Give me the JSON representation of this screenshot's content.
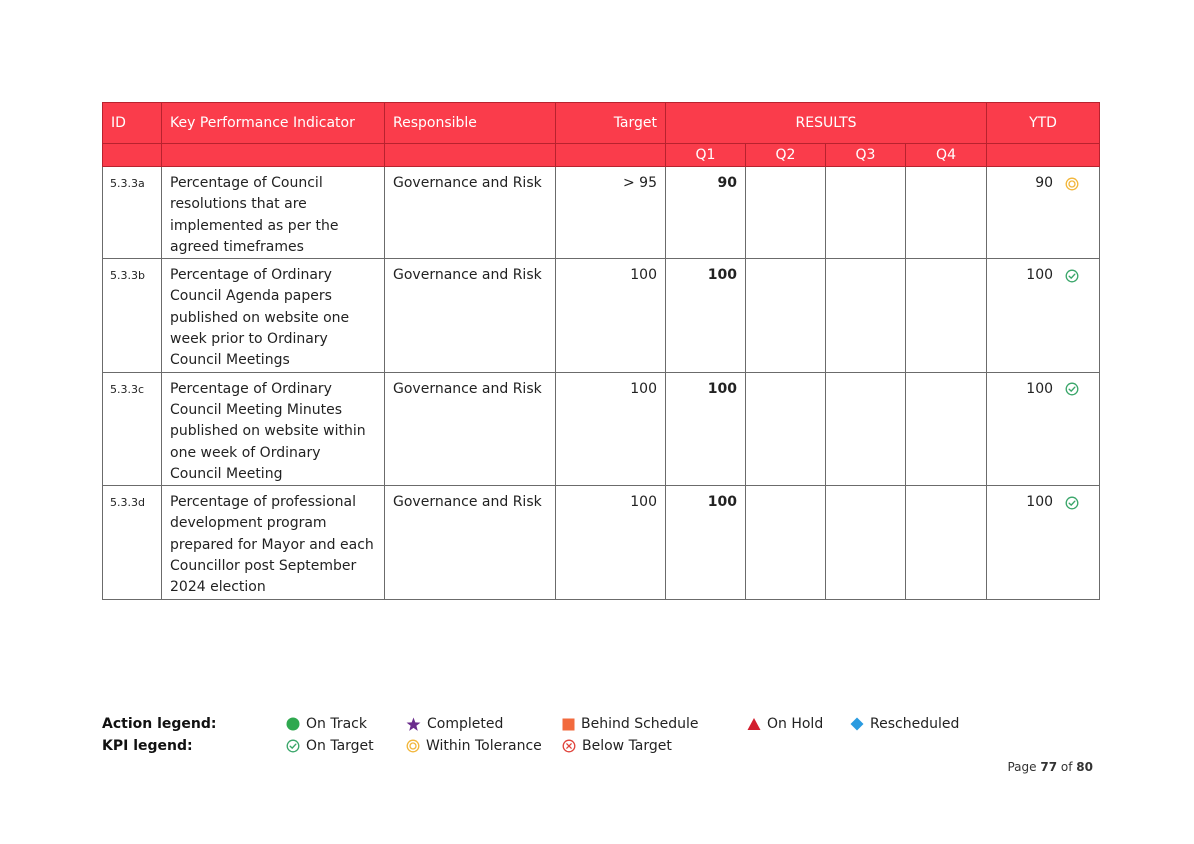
{
  "headers": {
    "id": "ID",
    "kpi": "Key Performance Indicator",
    "responsible": "Responsible",
    "target": "Target",
    "results": "RESULTS",
    "ytd": "YTD",
    "q1": "Q1",
    "q2": "Q2",
    "q3": "Q3",
    "q4": "Q4"
  },
  "rows": [
    {
      "id": "5.3.3a",
      "kpi": "Percentage of Council resolutions that are implemented as per the agreed timeframes",
      "responsible": "Governance and Risk",
      "target": "> 95",
      "q1": "90",
      "q2": "",
      "q3": "",
      "q4": "",
      "ytd": "90",
      "status_icon": "within-tolerance-icon"
    },
    {
      "id": "5.3.3b",
      "kpi": "Percentage of Ordinary Council Agenda papers published on website one week prior to Ordinary Council Meetings",
      "responsible": "Governance and Risk",
      "target": "100",
      "q1": "100",
      "q2": "",
      "q3": "",
      "q4": "",
      "ytd": "100",
      "status_icon": "on-target-icon"
    },
    {
      "id": "5.3.3c",
      "kpi": "Percentage of Ordinary Council Meeting Minutes published on website within one week of Ordinary Council Meeting",
      "responsible": "Governance and Risk",
      "target": "100",
      "q1": "100",
      "q2": "",
      "q3": "",
      "q4": "",
      "ytd": "100",
      "status_icon": "on-target-icon"
    },
    {
      "id": "5.3.3d",
      "kpi": "Percentage of professional development program prepared for Mayor and each Councillor post September 2024 election",
      "responsible": "Governance and Risk",
      "target": "100",
      "q1": "100",
      "q2": "",
      "q3": "",
      "q4": "",
      "ytd": "100",
      "status_icon": "on-target-icon"
    }
  ],
  "legend": {
    "action_label": "Action legend:",
    "kpi_label": "KPI legend:",
    "action_items": [
      "On Track",
      "Completed",
      "Behind Schedule",
      "On Hold",
      "Rescheduled"
    ],
    "kpi_items": [
      "On Target",
      "Within Tolerance",
      "Below Target"
    ]
  },
  "footer": {
    "page_prefix": "Page",
    "page_current": "77",
    "page_of": "of",
    "page_total": "80"
  },
  "colors": {
    "header_bg": "#fa3c4b",
    "on_track": "#2fa84f",
    "completed": "#6a2c8c",
    "behind_schedule": "#f26a3d",
    "on_hold": "#d21f2e",
    "rescheduled": "#2a9be0",
    "on_target": "#3aa66a",
    "within_tolerance": "#f2b63a",
    "below_target": "#e0443c"
  }
}
